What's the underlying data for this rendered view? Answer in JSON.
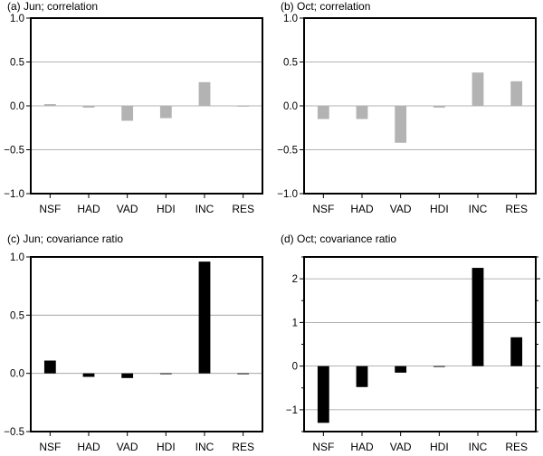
{
  "chart_data": [
    {
      "type": "bar",
      "title": "(a) Jun; correlation",
      "categories": [
        "NSF",
        "HAD",
        "VAD",
        "HDI",
        "INC",
        "RES"
      ],
      "values": [
        0.02,
        -0.02,
        -0.17,
        -0.14,
        0.27,
        0.0
      ],
      "ylim": [
        -1.0,
        1.0
      ],
      "yticks": [
        -1.0,
        -0.5,
        0.0,
        0.5,
        1.0
      ],
      "ytick_labels": [
        "−1.0",
        "−0.5",
        "0.0",
        "0.5",
        "1.0"
      ],
      "grid": true,
      "bar_color": "#b3b3b3"
    },
    {
      "type": "bar",
      "title": "(b) Oct; correlation",
      "categories": [
        "NSF",
        "HAD",
        "VAD",
        "HDI",
        "INC",
        "RES"
      ],
      "values": [
        -0.15,
        -0.15,
        -0.42,
        -0.02,
        0.38,
        0.28
      ],
      "ylim": [
        -1.0,
        1.0
      ],
      "yticks": [
        -1.0,
        -0.5,
        0.0,
        0.5,
        1.0
      ],
      "ytick_labels": [
        "−1.0",
        "−0.5",
        "0.0",
        "0.5",
        "1.0"
      ],
      "grid": true,
      "bar_color": "#b3b3b3"
    },
    {
      "type": "bar",
      "title": "(c) Jun; covariance ratio",
      "categories": [
        "NSF",
        "HAD",
        "VAD",
        "HDI",
        "INC",
        "RES"
      ],
      "values": [
        0.11,
        -0.03,
        -0.04,
        0.0,
        0.96,
        0.0
      ],
      "ylim": [
        -0.5,
        1.0
      ],
      "yticks": [
        -0.5,
        0.0,
        0.5,
        1.0
      ],
      "ytick_labels": [
        "−0.5",
        "0.0",
        "0.5",
        "1.0"
      ],
      "grid": true,
      "bar_color": "#000000"
    },
    {
      "type": "bar",
      "title": "(d) Oct; covariance ratio",
      "categories": [
        "NSF",
        "HAD",
        "VAD",
        "HDI",
        "INC",
        "RES"
      ],
      "values": [
        -1.3,
        -0.48,
        -0.15,
        0.0,
        2.25,
        0.66
      ],
      "ylim": [
        -1.5,
        2.5
      ],
      "yticks": [
        -1,
        0,
        1,
        2
      ],
      "ytick_labels": [
        "−1",
        "0",
        "1",
        "2"
      ],
      "grid": true,
      "bar_color": "#000000"
    }
  ]
}
